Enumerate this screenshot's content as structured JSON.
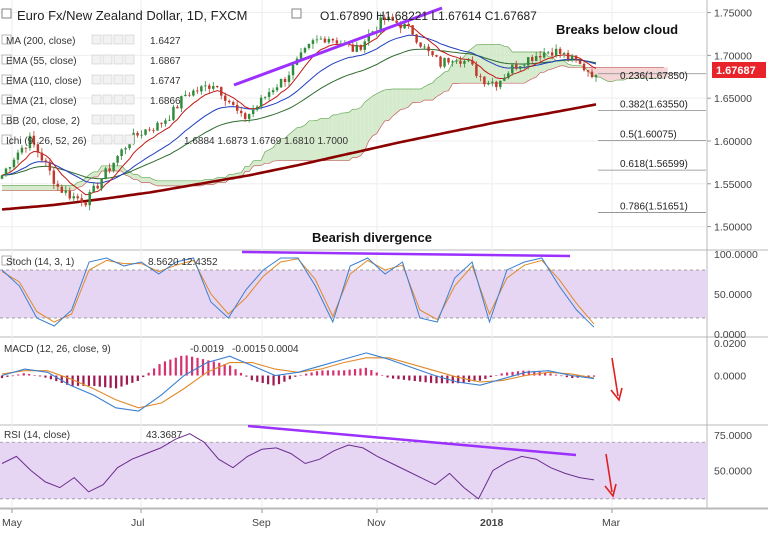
{
  "header": {
    "symbol_title": "Euro Fx/New Zealand Dollar, 1D, FXCM",
    "ohlc": "O1.67890 H1.68221 L1.67614 C1.67687",
    "last_price": "1.67687"
  },
  "legend": [
    {
      "label": "MA (200, close)",
      "value": "1.6427",
      "color": "#8b0000"
    },
    {
      "label": "EMA (55, close)",
      "value": "1.6867",
      "color": "#1f3fbf"
    },
    {
      "label": "EMA (110, close)",
      "value": "1.6747",
      "color": "#2e6b2e"
    },
    {
      "label": "EMA (21, close)",
      "value": "1.6866",
      "color": "#c21818"
    },
    {
      "label": "BB (20, close, 2)",
      "value": "",
      "color": "#777777"
    },
    {
      "label": "Ichi (9, 26, 52, 26)",
      "value": "1.6884  1.6873  1.6769  1.6810  1.7000",
      "color": "#7a0c0c"
    }
  ],
  "annotations": {
    "cloud": "Breaks below cloud",
    "divergence": "Bearish divergence"
  },
  "panes": {
    "stoch": {
      "label": "Stoch (14, 3, 1)",
      "values": "8.5620  12.4352"
    },
    "macd": {
      "label": "MACD (12, 26, close, 9)",
      "values": [
        "-0.0019",
        "-0.0015",
        "0.0004"
      ]
    },
    "rsi": {
      "label": "RSI (14, close)",
      "value": "43.3687"
    }
  },
  "colors": {
    "up": "#2e8b3a",
    "down": "#c0392b",
    "trendline": "#9b30ff",
    "arrow": "#e02020",
    "cloud_bull": "#cfe8c4",
    "cloud_bear": "#f3cfcf",
    "osc_band": "#e6d6f3"
  },
  "chart_data": [
    {
      "type": "candlestick",
      "title": "Euro Fx/New Zealand Dollar, 1D, FXCM",
      "x_ticks": [
        "May",
        "Jul",
        "Sep",
        "Nov",
        "2018",
        "Mar"
      ],
      "y_ticks": [
        "1.75000",
        "1.70000",
        "1.65000",
        "1.60000",
        "1.55000",
        "1.50000"
      ],
      "ylim": [
        1.475,
        1.76
      ],
      "close_path": [
        1.56,
        1.585,
        1.602,
        1.575,
        1.545,
        1.535,
        1.53,
        1.555,
        1.578,
        1.6,
        1.612,
        1.618,
        1.632,
        1.655,
        1.66,
        1.668,
        1.648,
        1.625,
        1.64,
        1.66,
        1.673,
        1.695,
        1.715,
        1.722,
        1.715,
        1.705,
        1.725,
        1.742,
        1.738,
        1.728,
        1.705,
        1.69,
        1.7,
        1.69,
        1.672,
        1.668,
        1.685,
        1.695,
        1.702,
        1.706,
        1.698,
        1.687,
        1.6769
      ],
      "fib_levels": [
        {
          "label": "0.236(1.67850)",
          "value": 1.6785
        },
        {
          "label": "0.382(1.63550)",
          "value": 1.6355
        },
        {
          "label": "0.5(1.60075)",
          "value": 1.60075
        },
        {
          "label": "0.618(1.56599)",
          "value": 1.56599
        },
        {
          "label": "0.786(1.51651)",
          "value": 1.51651
        }
      ],
      "ma200_path": [
        1.52,
        1.525,
        1.532,
        1.54,
        1.55,
        1.56,
        1.572,
        1.585,
        1.598,
        1.61,
        1.622,
        1.632,
        1.6427
      ]
    },
    {
      "type": "line",
      "title": "Stoch (14, 3, 1)",
      "y_ticks": [
        "100.0000",
        "50.0000",
        "0.0000"
      ],
      "ylim": [
        0,
        100
      ],
      "bands": [
        20,
        80
      ],
      "series": [
        {
          "values": [
            80,
            60,
            20,
            10,
            30,
            90,
            95,
            85,
            90,
            75,
            90,
            95,
            40,
            20,
            55,
            80,
            95,
            95,
            60,
            15,
            85,
            95,
            75,
            90,
            20,
            15,
            70,
            90,
            15,
            80,
            90,
            95,
            60,
            30,
            8.562
          ]
        },
        {
          "values": [
            78,
            65,
            28,
            15,
            25,
            80,
            92,
            88,
            88,
            78,
            86,
            92,
            50,
            25,
            45,
            72,
            90,
            94,
            68,
            22,
            75,
            92,
            80,
            86,
            30,
            18,
            60,
            85,
            25,
            70,
            86,
            92,
            68,
            38,
            12.4352
          ]
        }
      ]
    },
    {
      "type": "line",
      "title": "MACD (12, 26, close, 9)",
      "y_ticks": [
        "0.0200",
        "0.0000"
      ],
      "ylim": [
        -0.03,
        0.022
      ],
      "series": [
        {
          "values": [
            0.0,
            0.004,
            0.002,
            -0.006,
            -0.012,
            -0.02,
            -0.022,
            -0.012,
            0.0,
            0.008,
            0.012,
            0.006,
            0.0,
            0.002,
            0.006,
            0.01,
            0.014,
            0.01,
            0.005,
            0.0,
            -0.004,
            -0.006,
            -0.002,
            0.002,
            0.003,
            0.0,
            -0.0019
          ]
        },
        {
          "values": [
            0.001,
            0.003,
            0.003,
            -0.002,
            -0.008,
            -0.015,
            -0.02,
            -0.017,
            -0.008,
            0.002,
            0.008,
            0.008,
            0.004,
            0.002,
            0.004,
            0.008,
            0.011,
            0.011,
            0.007,
            0.003,
            -0.001,
            -0.004,
            -0.003,
            0.0,
            0.002,
            0.001,
            -0.0015
          ]
        }
      ]
    },
    {
      "type": "line",
      "title": "RSI (14, close)",
      "y_ticks": [
        "75.0000",
        "50.0000"
      ],
      "ylim": [
        25,
        80
      ],
      "bands": [
        30,
        70
      ],
      "series": [
        {
          "values": [
            55,
            60,
            50,
            42,
            38,
            45,
            35,
            40,
            52,
            58,
            62,
            66,
            72,
            76,
            70,
            58,
            52,
            60,
            65,
            66,
            62,
            55,
            58,
            64,
            68,
            66,
            60,
            55,
            50,
            45,
            40,
            48,
            38,
            30,
            50,
            56,
            60,
            58,
            52,
            48,
            45,
            43.3687
          ]
        }
      ]
    }
  ]
}
